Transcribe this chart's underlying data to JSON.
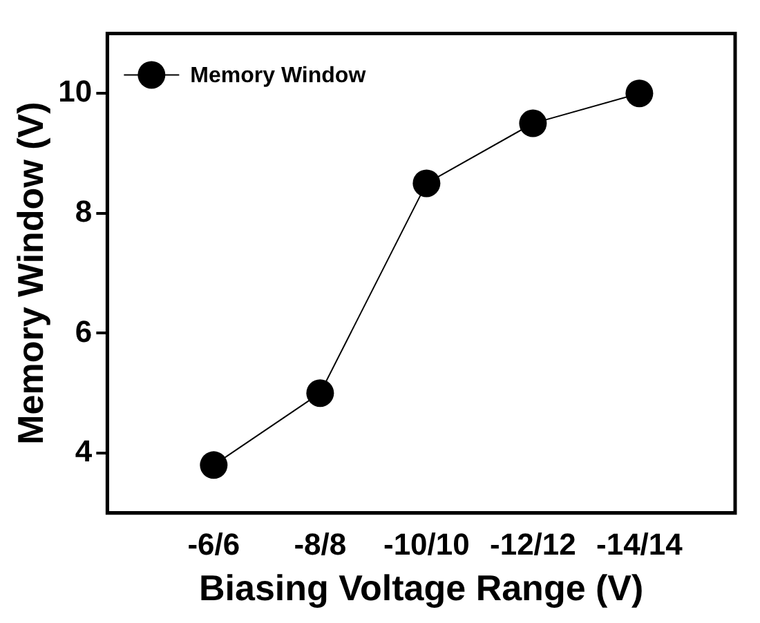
{
  "chart_data": {
    "type": "line",
    "xlabel": "Biasing Voltage Range (V)",
    "ylabel": "Memory Window (V)",
    "categories": [
      "-6/6",
      "-8/8",
      "-10/10",
      "-12/12",
      "-14/14"
    ],
    "series": [
      {
        "name": "Memory Window",
        "color": "#000000",
        "values": [
          3.8,
          5,
          8.5,
          9.5,
          10
        ]
      }
    ],
    "ylim": [
      3,
      11
    ],
    "yticks": [
      4,
      6,
      8,
      10
    ],
    "grid": false,
    "legend": "top left",
    "marker": "circle",
    "line_style": "solid"
  }
}
